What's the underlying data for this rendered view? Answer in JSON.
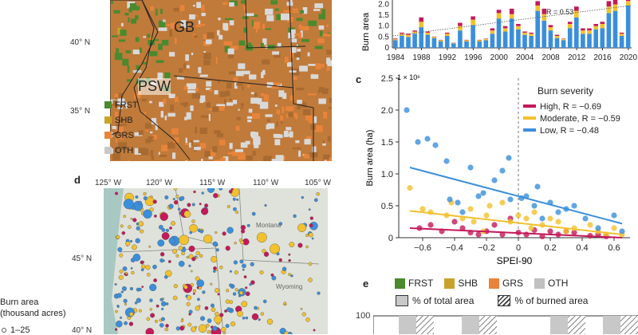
{
  "map_top": {
    "lat_labels": [
      "40° N",
      "35° N"
    ],
    "regions": [
      "GB",
      "PSW"
    ],
    "legend": [
      {
        "label": "FRST",
        "color": "#4a8a2e"
      },
      {
        "label": "SHB",
        "color": "#c9a22a"
      },
      {
        "label": "GRS",
        "color": "#e8843a"
      },
      {
        "label": "OTH",
        "color": "#c8c8c8"
      }
    ]
  },
  "panel_c_label": "c",
  "panel_d_label": "d",
  "panel_e_label": "e",
  "map_bottom": {
    "lon_labels": [
      "125° W",
      "120° W",
      "115° W",
      "110° W",
      "105° W"
    ],
    "lat_labels": [
      "45° N",
      "40° N"
    ],
    "place_labels": [
      "Montana",
      "Wyoming"
    ],
    "size_legend_title_1": "Burn area",
    "size_legend_title_2": "(thousand acres)",
    "size_legend_first": "1–25"
  },
  "panel_e": {
    "legend": [
      {
        "label": "FRST",
        "color": "#4a8a2e"
      },
      {
        "label": "SHB",
        "color": "#c9a22a"
      },
      {
        "label": "GRS",
        "color": "#e8843a"
      },
      {
        "label": "OTH",
        "color": "#c0c0c0"
      }
    ],
    "total_area_label": "% of total area",
    "burned_area_label": "% of burned area",
    "y_tick": "100"
  },
  "chart_data": [
    {
      "type": "bar",
      "panel": "b",
      "ylabel": "Burn area",
      "x_ticks": [
        "1984",
        "1988",
        "1992",
        "1996",
        "2000",
        "2004",
        "2008",
        "2012",
        "2016",
        "2020"
      ],
      "y_ticks": [
        "0",
        "0.5",
        "1.0",
        "1.5",
        "2.0"
      ],
      "ylim": [
        0,
        2.2
      ],
      "annotation": "R = 0.53",
      "years": [
        1984,
        1985,
        1986,
        1987,
        1988,
        1989,
        1990,
        1991,
        1992,
        1993,
        1994,
        1995,
        1996,
        1997,
        1998,
        1999,
        2000,
        2001,
        2002,
        2003,
        2004,
        2005,
        2006,
        2007,
        2008,
        2009,
        2010,
        2011,
        2012,
        2013,
        2014,
        2015,
        2016,
        2017,
        2018,
        2019,
        2020
      ],
      "series": [
        {
          "color": "#3a8fdc",
          "values": [
            0.35,
            0.55,
            0.5,
            0.65,
            0.95,
            0.6,
            0.45,
            0.3,
            0.55,
            0.2,
            0.8,
            0.3,
            1.05,
            0.3,
            0.35,
            0.65,
            1.35,
            0.75,
            1.35,
            0.85,
            0.6,
            0.55,
            1.7,
            1.25,
            0.8,
            0.45,
            0.35,
            0.9,
            1.4,
            0.65,
            0.65,
            0.85,
            0.9,
            1.6,
            1.7,
            0.55,
            1.95
          ]
        },
        {
          "color": "#f2c12e",
          "values": [
            0.05,
            0.1,
            0.1,
            0.1,
            0.25,
            0.1,
            0.05,
            0.05,
            0.1,
            0.02,
            0.2,
            0.05,
            0.25,
            0.05,
            0.05,
            0.15,
            0.25,
            0.15,
            0.2,
            0.15,
            0.1,
            0.1,
            0.25,
            0.3,
            0.15,
            0.1,
            0.05,
            0.2,
            0.3,
            0.15,
            0.15,
            0.15,
            0.2,
            0.3,
            0.3,
            0.1,
            0.2
          ]
        },
        {
          "color": "#c4195a",
          "values": [
            0.03,
            0.05,
            0.05,
            0.05,
            0.2,
            0.05,
            0.02,
            0.02,
            0.05,
            0.01,
            0.15,
            0.02,
            0.15,
            0.02,
            0.02,
            0.1,
            0.15,
            0.1,
            0.25,
            0.1,
            0.05,
            0.05,
            0.2,
            0.25,
            0.1,
            0.05,
            0.02,
            0.1,
            0.2,
            0.1,
            0.1,
            0.1,
            0.1,
            0.25,
            0.3,
            0.05,
            0.1
          ]
        }
      ]
    },
    {
      "type": "scatter",
      "panel": "c",
      "xlabel": "SPEI-90",
      "ylabel": "Burn area (ha)",
      "y_scale_note": "1 × 10⁶",
      "x_ticks": [
        "−0.6",
        "−0.4",
        "−0.2",
        "0",
        "0.2",
        "0.4",
        "0.6"
      ],
      "y_ticks": [
        "0",
        "0.5",
        "1.0",
        "1.5",
        "2.0",
        "2.5"
      ],
      "xlim": [
        -0.75,
        0.7
      ],
      "ylim": [
        0,
        2.5
      ],
      "legend_title": "Burn severity",
      "series": [
        {
          "name": "High, R = −0.69",
          "color": "#c4195a",
          "points": [
            [
              -0.62,
              0.15
            ],
            [
              -0.55,
              0.2
            ],
            [
              -0.48,
              0.1
            ],
            [
              -0.4,
              0.25
            ],
            [
              -0.35,
              0.15
            ],
            [
              -0.25,
              0.05
            ],
            [
              -0.2,
              0.1
            ],
            [
              -0.15,
              0.2
            ],
            [
              -0.1,
              0.05
            ],
            [
              0.0,
              0.08
            ],
            [
              0.05,
              0.05
            ],
            [
              0.1,
              0.12
            ],
            [
              0.15,
              0.02
            ],
            [
              0.2,
              0.1
            ],
            [
              0.25,
              0.05
            ],
            [
              0.35,
              0.08
            ],
            [
              0.45,
              0.03
            ],
            [
              0.5,
              0.05
            ],
            [
              0.55,
              0.02
            ],
            [
              -0.05,
              0.3
            ],
            [
              0.3,
              0.1
            ],
            [
              -0.3,
              0.08
            ]
          ],
          "fit": [
            [
              -0.68,
              0.15
            ],
            [
              0.65,
              -0.05
            ]
          ]
        },
        {
          "name": "Moderate, R = −0.59",
          "color": "#f2c12e",
          "points": [
            [
              -0.68,
              0.78
            ],
            [
              -0.6,
              0.45
            ],
            [
              -0.55,
              0.4
            ],
            [
              -0.45,
              0.35
            ],
            [
              -0.42,
              0.55
            ],
            [
              -0.35,
              0.3
            ],
            [
              -0.3,
              0.45
            ],
            [
              -0.28,
              0.25
            ],
            [
              -0.2,
              0.35
            ],
            [
              -0.18,
              0.5
            ],
            [
              -0.1,
              0.55
            ],
            [
              -0.05,
              0.25
            ],
            [
              0.0,
              0.35
            ],
            [
              0.05,
              0.3
            ],
            [
              0.1,
              0.4
            ],
            [
              0.15,
              0.2
            ],
            [
              0.2,
              0.3
            ],
            [
              0.25,
              0.25
            ],
            [
              0.3,
              0.1
            ],
            [
              0.35,
              0.15
            ],
            [
              0.45,
              0.2
            ],
            [
              0.5,
              0.1
            ],
            [
              0.55,
              0.05
            ],
            [
              0.6,
              0.15
            ],
            [
              0.65,
              0.05
            ],
            [
              -0.22,
              0.1
            ],
            [
              0.08,
              0.15
            ]
          ],
          "fit": [
            [
              -0.68,
              0.42
            ],
            [
              0.65,
              0.05
            ]
          ]
        },
        {
          "name": "Low, R = −0.48",
          "color": "#3a8fdc",
          "points": [
            [
              -0.7,
              2.0
            ],
            [
              -0.63,
              1.5
            ],
            [
              -0.57,
              1.55
            ],
            [
              -0.52,
              1.45
            ],
            [
              -0.45,
              1.2
            ],
            [
              -0.43,
              0.6
            ],
            [
              -0.38,
              0.55
            ],
            [
              -0.3,
              1.1
            ],
            [
              -0.25,
              0.65
            ],
            [
              -0.22,
              0.7
            ],
            [
              -0.15,
              0.9
            ],
            [
              -0.1,
              1.05
            ],
            [
              -0.06,
              1.25
            ],
            [
              -0.05,
              0.6
            ],
            [
              0.02,
              0.62
            ],
            [
              0.05,
              0.65
            ],
            [
              0.1,
              0.5
            ],
            [
              0.15,
              0.3
            ],
            [
              0.2,
              0.55
            ],
            [
              0.25,
              0.4
            ],
            [
              0.3,
              0.45
            ],
            [
              0.35,
              0.5
            ],
            [
              0.42,
              0.3
            ],
            [
              0.5,
              0.15
            ],
            [
              0.6,
              0.35
            ],
            [
              0.65,
              0.1
            ],
            [
              -0.35,
              0.4
            ],
            [
              0.12,
              0.8
            ]
          ],
          "fit": [
            [
              -0.68,
              1.1
            ],
            [
              0.65,
              0.22
            ]
          ]
        }
      ]
    }
  ]
}
